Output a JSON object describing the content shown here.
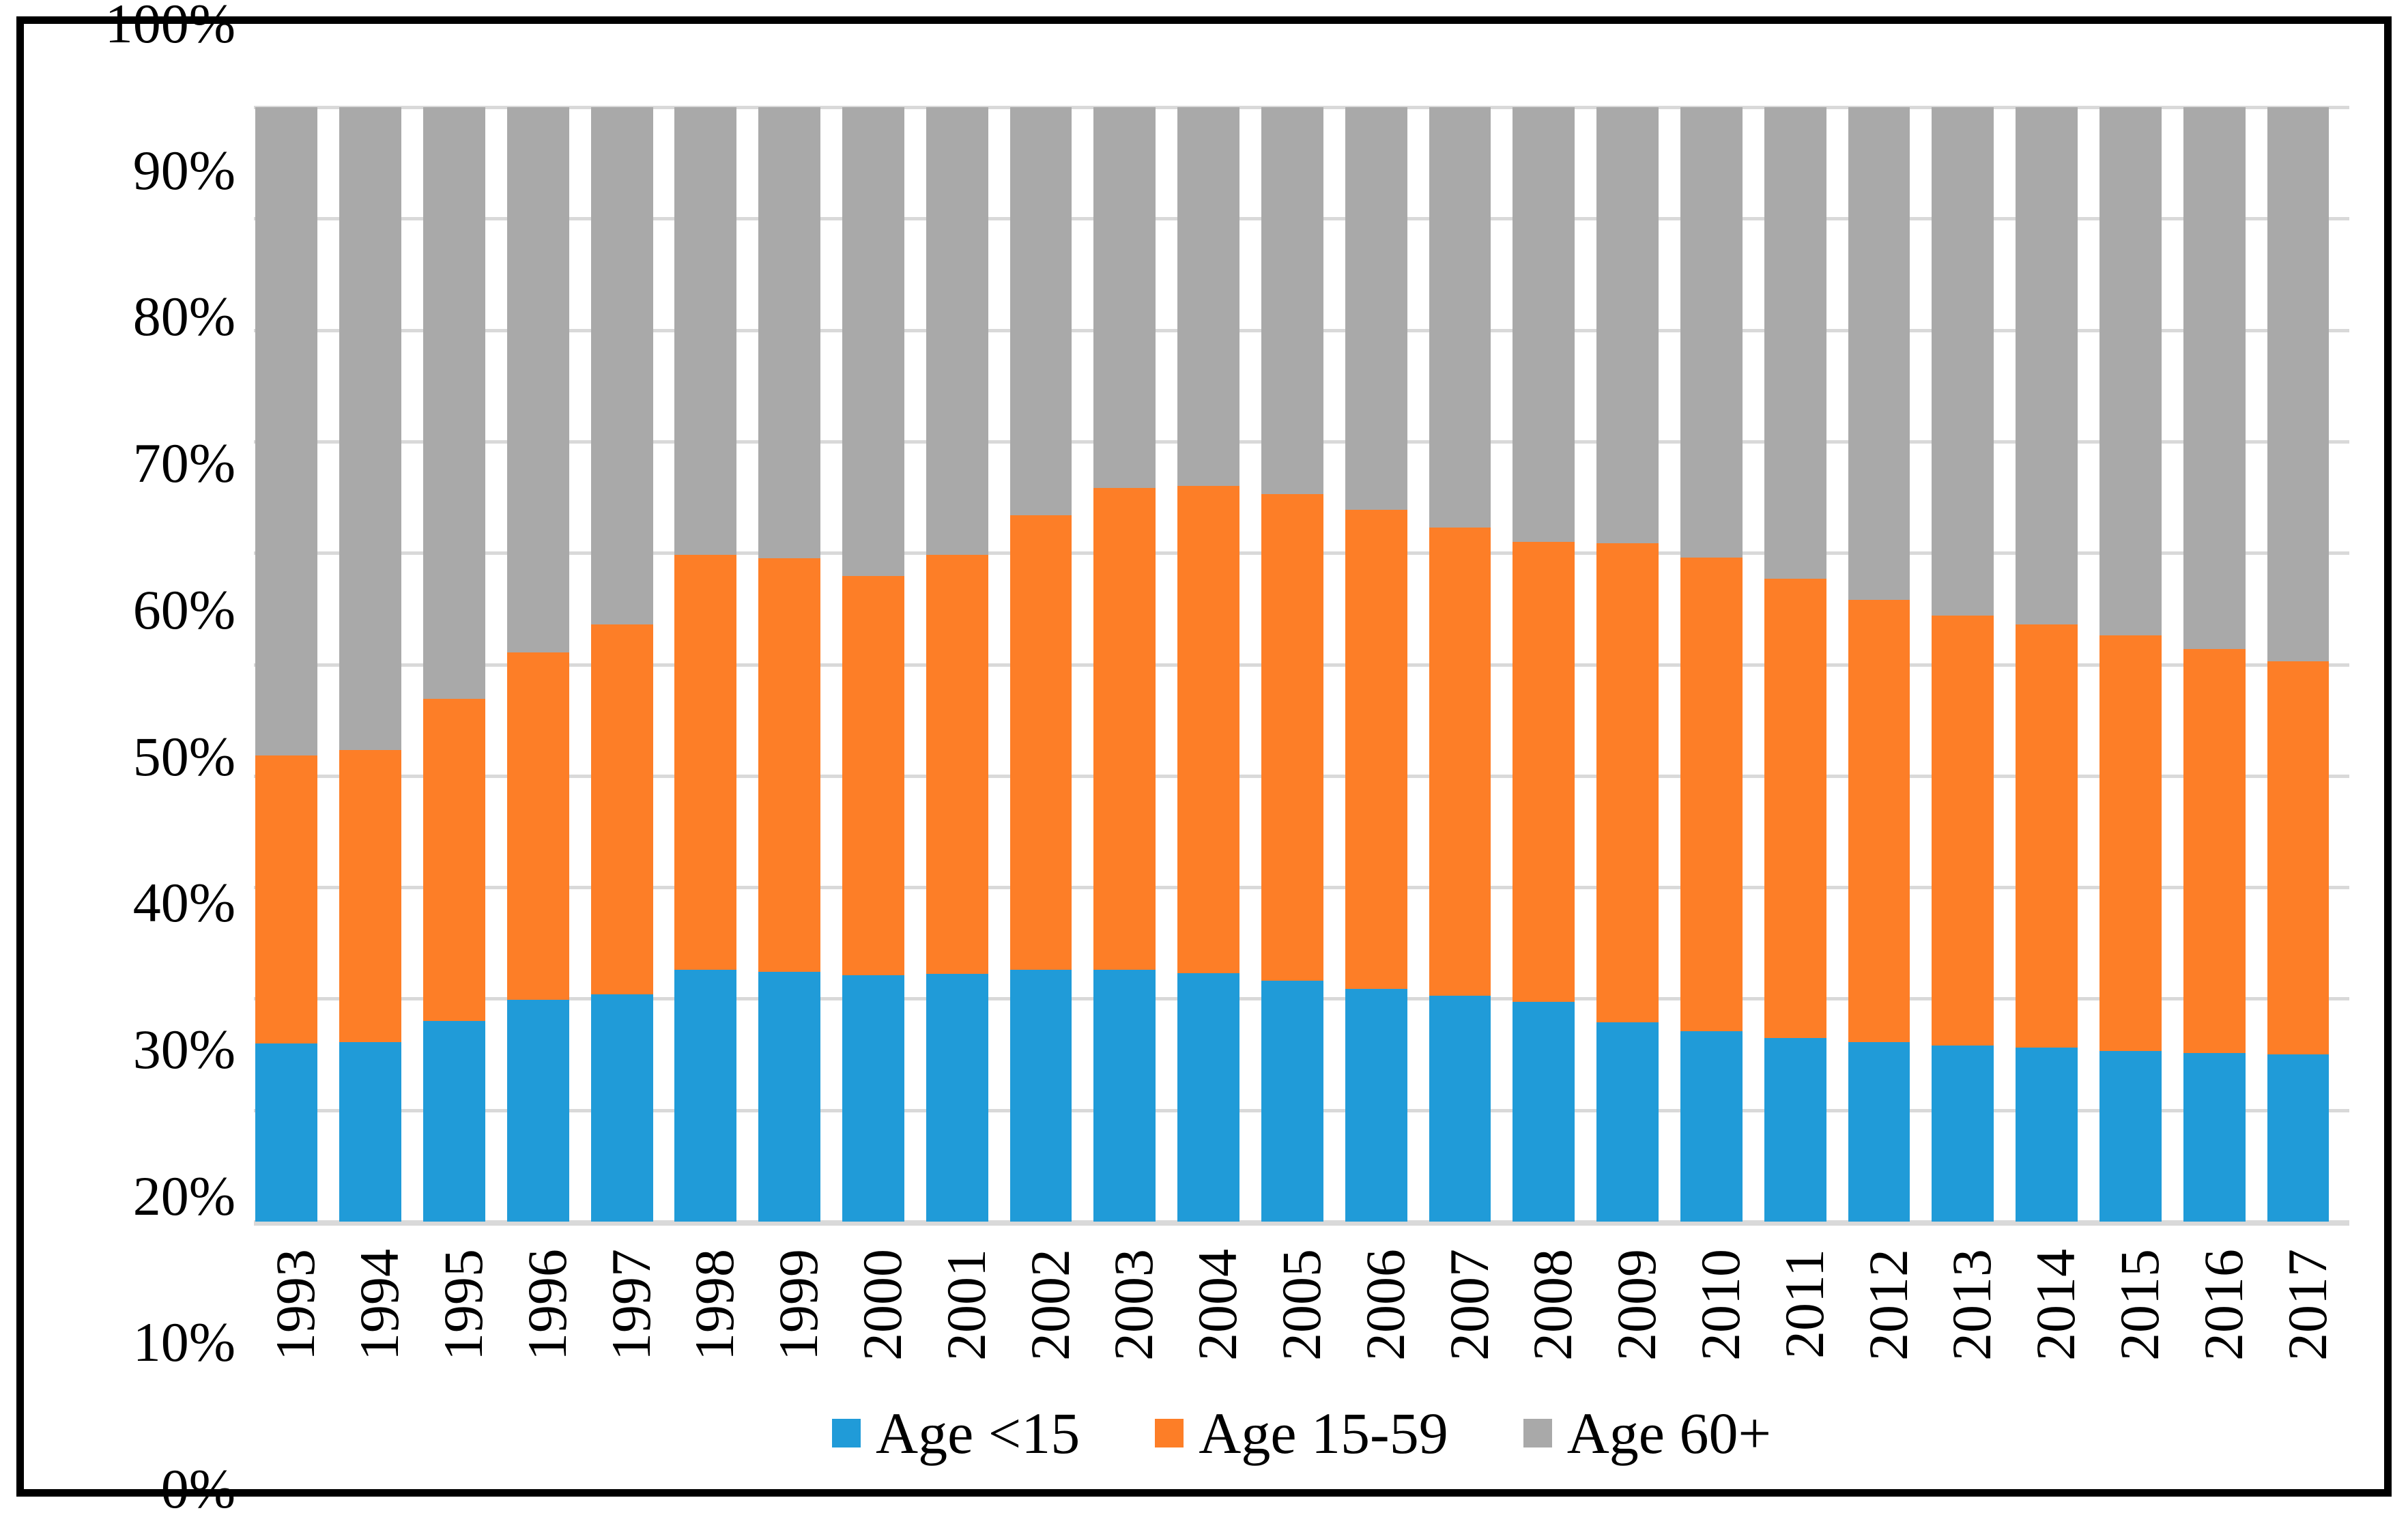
{
  "figure": {
    "background": "#FFFFFF",
    "border_color": "#000000",
    "gridline_color": "#D9D9D9"
  },
  "chart_data": {
    "type": "bar",
    "subtype": "stacked-100-percent-column",
    "title": "",
    "xlabel": "",
    "ylabel": "",
    "grid": "horizontal",
    "legend_position": "bottom-center",
    "categories": [
      "1993",
      "1994",
      "1995",
      "1996",
      "1997",
      "1998",
      "1999",
      "2000",
      "2001",
      "2002",
      "2003",
      "2004",
      "2005",
      "2006",
      "2007",
      "2008",
      "2009",
      "2010",
      "2011",
      "2012",
      "2013",
      "2014",
      "2015",
      "2016",
      "2017"
    ],
    "series": [
      {
        "name": "Age <15",
        "color": "#209BD8",
        "values": [
          16.0,
          16.1,
          18.0,
          19.9,
          20.4,
          22.6,
          22.4,
          22.1,
          22.2,
          22.6,
          22.6,
          22.3,
          21.6,
          20.9,
          20.3,
          19.7,
          17.9,
          17.1,
          16.5,
          16.1,
          15.8,
          15.6,
          15.3,
          15.1,
          15.0
        ]
      },
      {
        "name": "Age 15-59",
        "color": "#FD7E27",
        "values": [
          25.8,
          26.2,
          28.9,
          31.2,
          33.2,
          37.2,
          37.1,
          35.8,
          37.6,
          40.8,
          43.2,
          43.7,
          43.7,
          43.0,
          42.0,
          41.3,
          43.0,
          42.5,
          41.2,
          39.7,
          38.6,
          38.0,
          37.3,
          36.3,
          35.3
        ]
      },
      {
        "name": "Age 60+",
        "color": "#A9A9A9",
        "values": [
          58.2,
          57.7,
          53.1,
          48.9,
          46.4,
          40.2,
          40.5,
          42.1,
          40.2,
          36.6,
          34.2,
          34.0,
          34.7,
          36.1,
          37.7,
          39.0,
          39.1,
          40.4,
          42.3,
          44.2,
          45.6,
          46.4,
          47.4,
          48.6,
          49.7
        ]
      }
    ],
    "y_axis": {
      "min": 0,
      "max": 100,
      "tick_step": 10,
      "ticks": [
        "0%",
        "10%",
        "20%",
        "30%",
        "40%",
        "50%",
        "60%",
        "70%",
        "80%",
        "90%",
        "100%"
      ]
    }
  }
}
